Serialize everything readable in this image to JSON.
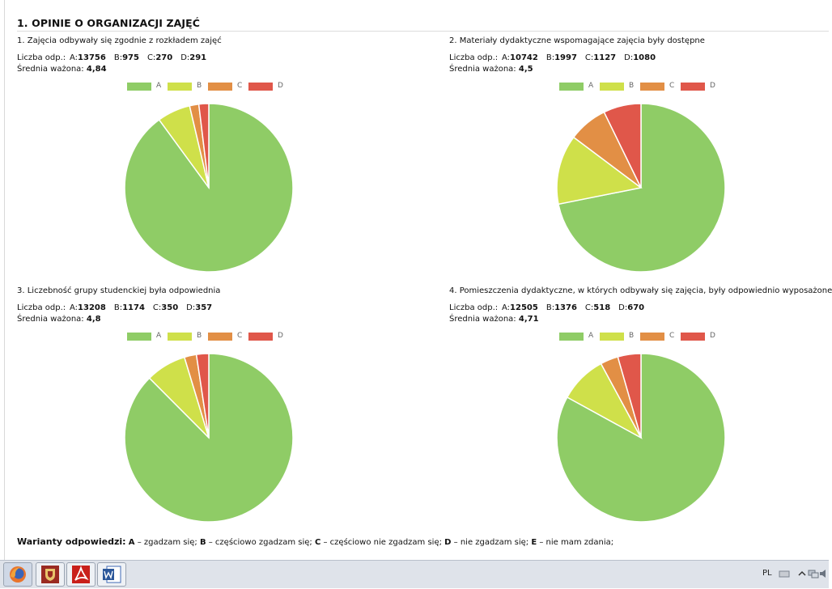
{
  "section_title": "1. OPINIE O ORGANIZACJI ZAJĘĆ",
  "questions": [
    {
      "title": "1. Zajęcia odbywały się zgodnie z rozkładem zajęć",
      "counts_label": "Liczba odp.:",
      "counts": [
        {
          "letter": "A:",
          "value": "13756"
        },
        {
          "letter": "B:",
          "value": "975"
        },
        {
          "letter": "C:",
          "value": "270"
        },
        {
          "letter": "D:",
          "value": "291"
        }
      ],
      "avg_label": "Średnia ważona:",
      "avg_value": "4,84"
    },
    {
      "title": "2. Materiały dydaktyczne wspomagające zajęcia były dostępne",
      "counts_label": "Liczba odp.:",
      "counts": [
        {
          "letter": "A:",
          "value": "10742"
        },
        {
          "letter": "B:",
          "value": "1997"
        },
        {
          "letter": "C:",
          "value": "1127"
        },
        {
          "letter": "D:",
          "value": "1080"
        }
      ],
      "avg_label": "Średnia ważona:",
      "avg_value": "4,5"
    },
    {
      "title": "3. Liczebność grupy studenckiej była odpowiednia",
      "counts_label": "Liczba odp.:",
      "counts": [
        {
          "letter": "A:",
          "value": "13208"
        },
        {
          "letter": "B:",
          "value": "1174"
        },
        {
          "letter": "C:",
          "value": "350"
        },
        {
          "letter": "D:",
          "value": "357"
        }
      ],
      "avg_label": "Średnia ważona:",
      "avg_value": "4,8"
    },
    {
      "title": "4. Pomieszczenia dydaktyczne, w których odbywały się zajęcia, były odpowiednio wyposażone",
      "counts_label": "Liczba odp.:",
      "counts": [
        {
          "letter": "A:",
          "value": "12505"
        },
        {
          "letter": "B:",
          "value": "1376"
        },
        {
          "letter": "C:",
          "value": "518"
        },
        {
          "letter": "D:",
          "value": "670"
        }
      ],
      "avg_label": "Średnia ważona:",
      "avg_value": "4,71"
    }
  ],
  "chart_data": [
    {
      "type": "pie",
      "categories": [
        "A",
        "B",
        "C",
        "D"
      ],
      "values": [
        13756,
        975,
        270,
        291
      ],
      "legend": "top",
      "colors": [
        "#8fcc66",
        "#cfe04a",
        "#e28f45",
        "#e0574a"
      ]
    },
    {
      "type": "pie",
      "categories": [
        "A",
        "B",
        "C",
        "D"
      ],
      "values": [
        10742,
        1997,
        1127,
        1080
      ],
      "legend": "top",
      "colors": [
        "#8fcc66",
        "#cfe04a",
        "#e28f45",
        "#e0574a"
      ]
    },
    {
      "type": "pie",
      "categories": [
        "A",
        "B",
        "C",
        "D"
      ],
      "values": [
        13208,
        1174,
        350,
        357
      ],
      "legend": "top",
      "colors": [
        "#8fcc66",
        "#cfe04a",
        "#e28f45",
        "#e0574a"
      ]
    },
    {
      "type": "pie",
      "categories": [
        "A",
        "B",
        "C",
        "D"
      ],
      "values": [
        12505,
        1376,
        518,
        670
      ],
      "legend": "top",
      "colors": [
        "#8fcc66",
        "#cfe04a",
        "#e28f45",
        "#e0574a"
      ]
    }
  ],
  "variants": {
    "title": "Warianty odpowiedzi:",
    "items": [
      {
        "k": "A",
        "t": " – zgadzam się; "
      },
      {
        "k": "B",
        "t": " – częściowo zgadzam się; "
      },
      {
        "k": "C",
        "t": " – częściowo nie zgadzam się; "
      },
      {
        "k": "D",
        "t": " – nie zgadzam się; "
      },
      {
        "k": "E",
        "t": " – nie mam zdania;"
      }
    ]
  },
  "taskbar": {
    "apps": [
      {
        "name": "firefox-icon"
      },
      {
        "name": "university-crest-icon"
      },
      {
        "name": "pdf-reader-icon"
      },
      {
        "name": "word-icon"
      }
    ],
    "language": "PL"
  }
}
